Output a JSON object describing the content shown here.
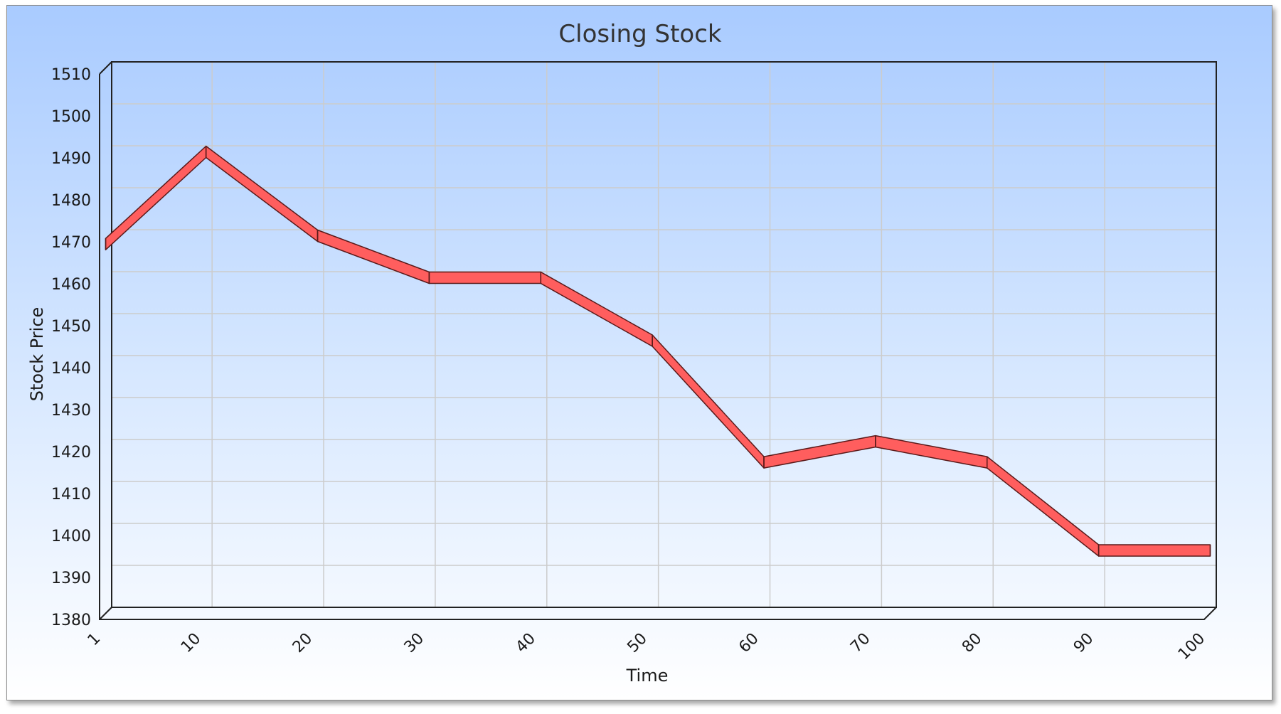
{
  "chart_data": {
    "type": "line",
    "title": "Closing Stock",
    "xlabel": "Time",
    "ylabel": "Stock Price",
    "x_ticks": [
      "1",
      "10",
      "20",
      "30",
      "40",
      "50",
      "60",
      "70",
      "80",
      "90",
      "100"
    ],
    "y_ticks": [
      1380,
      1390,
      1400,
      1410,
      1420,
      1430,
      1440,
      1450,
      1460,
      1470,
      1480,
      1490,
      1500,
      1510
    ],
    "ylim": [
      1380,
      1510
    ],
    "grid": true,
    "legend": "none",
    "style": "3d-ribbon",
    "series": [
      {
        "color": "#ff5e5e",
        "points": [
          {
            "x": 1,
            "y": 1468
          },
          {
            "x": 10,
            "y": 1490
          },
          {
            "x": 20,
            "y": 1470
          },
          {
            "x": 30,
            "y": 1460
          },
          {
            "x": 40,
            "y": 1460
          },
          {
            "x": 50,
            "y": 1445
          },
          {
            "x": 60,
            "y": 1416
          },
          {
            "x": 70,
            "y": 1421
          },
          {
            "x": 80,
            "y": 1416
          },
          {
            "x": 90,
            "y": 1395
          },
          {
            "x": 100,
            "y": 1395
          }
        ]
      }
    ]
  },
  "colors": {
    "background_top": "#a9cbff",
    "background_bottom": "#ffffff",
    "grid": "#cccccc",
    "ribbon_fill": "#ff5e5e",
    "ribbon_stroke": "#5a1a1a"
  }
}
